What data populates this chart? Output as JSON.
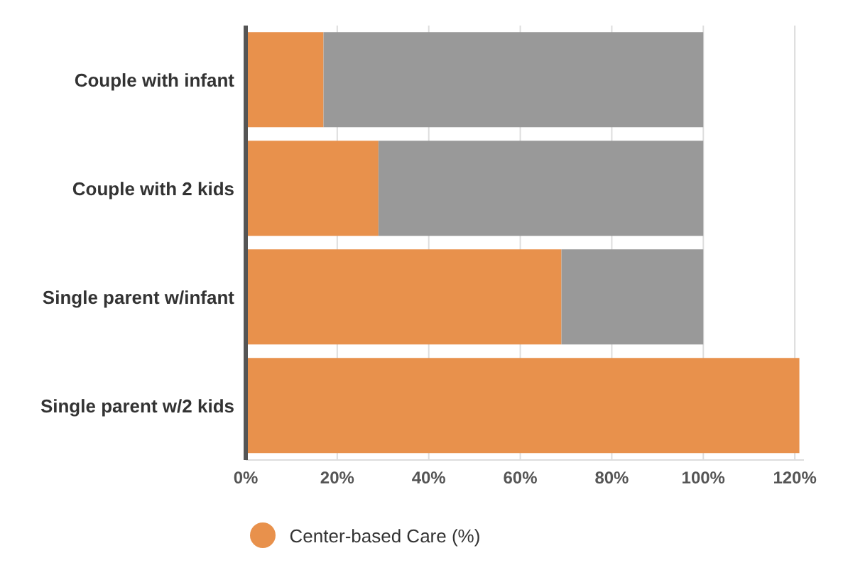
{
  "chart_data": {
    "type": "bar",
    "orientation": "horizontal",
    "stacked": true,
    "categories": [
      "Couple with infant",
      "Couple with 2 kids",
      "Single parent w/infant",
      "Single parent w/2 kids"
    ],
    "series": [
      {
        "name": "Center-based Care (%)",
        "color": "#e8914c",
        "values": [
          17,
          29,
          69,
          121
        ]
      },
      {
        "color": "#999999",
        "values": [
          83,
          71,
          31,
          null
        ]
      }
    ],
    "xlim": [
      0,
      122
    ],
    "xticks": [
      {
        "value": 0,
        "label": "0%"
      },
      {
        "value": 20,
        "label": "20%"
      },
      {
        "value": 40,
        "label": "40%"
      },
      {
        "value": 60,
        "label": "60%"
      },
      {
        "value": 80,
        "label": "80%"
      },
      {
        "value": 100,
        "label": "100%"
      },
      {
        "value": 120,
        "label": "120%"
      }
    ],
    "grid": "x",
    "legend": "bottom"
  }
}
